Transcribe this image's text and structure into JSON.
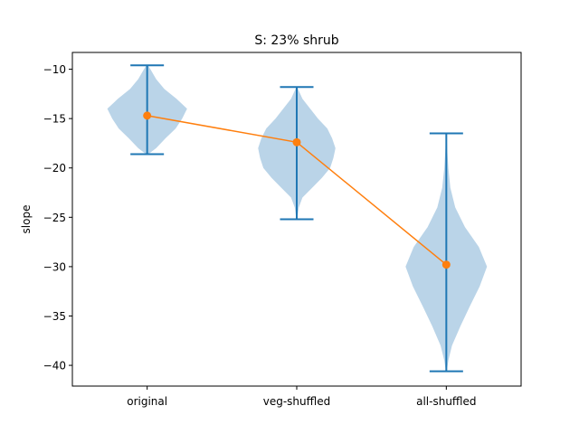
{
  "chart_data": {
    "type": "violin",
    "title": "S: 23% shrub",
    "xlabel": "",
    "ylabel": "slope",
    "categories": [
      "original",
      "veg-shuffled",
      "all-shuffled"
    ],
    "ylim": [
      -42.1,
      -8.3
    ],
    "yticks": [
      -40,
      -35,
      -30,
      -25,
      -20,
      -15,
      -10
    ],
    "ytick_labels": [
      "−40",
      "−35",
      "−30",
      "−25",
      "−20",
      "−15",
      "−10"
    ],
    "violins": [
      {
        "category": "original",
        "min": -18.6,
        "max": -9.6,
        "density": [
          [
            -18.6,
            0.03
          ],
          [
            -18.0,
            0.22
          ],
          [
            -17.0,
            0.45
          ],
          [
            -16.0,
            0.7
          ],
          [
            -15.0,
            0.86
          ],
          [
            -14.0,
            0.98
          ],
          [
            -13.0,
            0.72
          ],
          [
            -12.0,
            0.42
          ],
          [
            -11.0,
            0.22
          ],
          [
            -10.0,
            0.08
          ],
          [
            -9.6,
            0.02
          ]
        ]
      },
      {
        "category": "veg-shuffled",
        "min": -25.2,
        "max": -11.8,
        "density": [
          [
            -25.2,
            0.01
          ],
          [
            -24.0,
            0.05
          ],
          [
            -23.0,
            0.14
          ],
          [
            -22.0,
            0.38
          ],
          [
            -21.0,
            0.62
          ],
          [
            -20.0,
            0.82
          ],
          [
            -19.0,
            0.9
          ],
          [
            -18.0,
            0.95
          ],
          [
            -17.0,
            0.87
          ],
          [
            -16.0,
            0.75
          ],
          [
            -15.0,
            0.52
          ],
          [
            -14.0,
            0.33
          ],
          [
            -13.0,
            0.14
          ],
          [
            -11.8,
            0.01
          ]
        ]
      },
      {
        "category": "all-shuffled",
        "min": -40.6,
        "max": -16.5,
        "density": [
          [
            -40.6,
            0.01
          ],
          [
            -39.5,
            0.05
          ],
          [
            -38.0,
            0.14
          ],
          [
            -36.0,
            0.35
          ],
          [
            -34.0,
            0.58
          ],
          [
            -32.0,
            0.82
          ],
          [
            -30.0,
            1.0
          ],
          [
            -28.0,
            0.8
          ],
          [
            -26.0,
            0.46
          ],
          [
            -24.0,
            0.22
          ],
          [
            -22.0,
            0.1
          ],
          [
            -20.0,
            0.05
          ],
          [
            -18.0,
            0.02
          ],
          [
            -16.5,
            0.01
          ]
        ]
      }
    ],
    "series": [
      {
        "values": [
          -14.7,
          -17.4,
          -29.8
        ]
      }
    ],
    "colors": {
      "violin_fill": "#bad4e8",
      "whisker": "#1f77b4",
      "line": "#ff7f0e"
    },
    "grid": false
  }
}
